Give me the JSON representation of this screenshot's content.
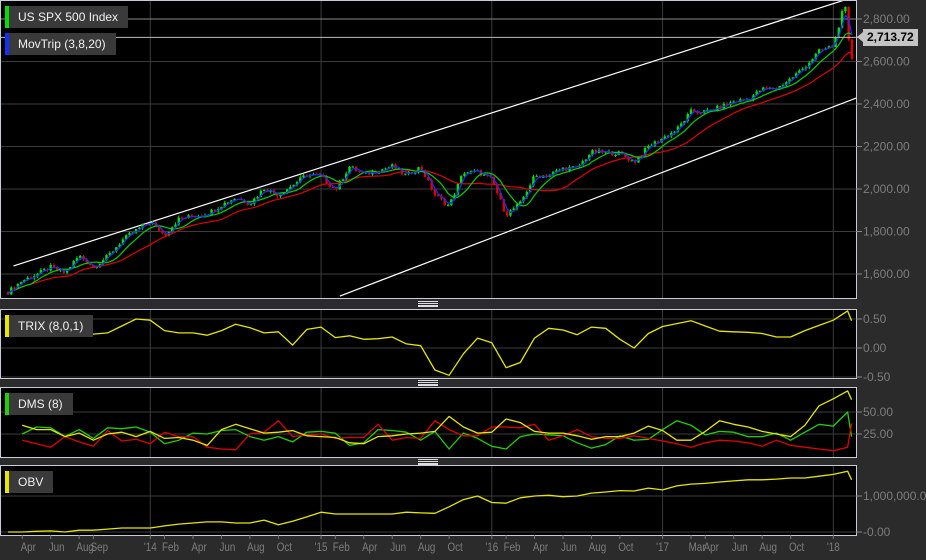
{
  "colors": {
    "up": "#00e000",
    "down": "#e00000",
    "ma_fast": "#1030ff",
    "ma_mid": "#00d000",
    "ma_slow": "#e00000",
    "trix": "#e6e600",
    "dms_plus": "#20d000",
    "dms_minus": "#e00000",
    "adx": "#e6e600",
    "obv": "#e6e600",
    "trendline": "#ffffff"
  },
  "legends": {
    "price": {
      "label": "US SPX 500 Index",
      "color": "#00e000"
    },
    "movtrip": {
      "label": "MovTrip (3,8,20)",
      "color": "#1030ff"
    },
    "trix": {
      "label": "TRIX (8,0,1)",
      "color": "#e6e600"
    },
    "dms": {
      "label": "DMS (8)",
      "color": "#20d000"
    },
    "obv": {
      "label": "OBV",
      "color": "#e6e600"
    }
  },
  "last_price_label": "2,713.72",
  "chart_data": [
    {
      "type": "candlestick",
      "name": "US SPX 500 Index",
      "overlay": "MovTrip (3,8,20)",
      "ylim": [
        1480,
        2890
      ],
      "yticks": [
        {
          "v": 2800,
          "t": "2,800.00"
        },
        {
          "v": 2600,
          "t": "2,600.00"
        },
        {
          "v": 2400,
          "t": "2,400.00"
        },
        {
          "v": 2200,
          "t": "2,200.00"
        },
        {
          "v": 2000,
          "t": "2,000.00"
        },
        {
          "v": 1800,
          "t": "1,800.00"
        },
        {
          "v": 1600,
          "t": "1,600.00"
        }
      ],
      "last_price": 2713.72,
      "close": [
        [
          "2013-03-01",
          1515
        ],
        [
          "2013-04-01",
          1569
        ],
        [
          "2013-05-01",
          1598
        ],
        [
          "2013-06-01",
          1631
        ],
        [
          "2013-07-01",
          1606
        ],
        [
          "2013-08-01",
          1686
        ],
        [
          "2013-09-01",
          1633
        ],
        [
          "2013-10-01",
          1682
        ],
        [
          "2013-11-01",
          1757
        ],
        [
          "2013-12-01",
          1806
        ],
        [
          "2014-01-01",
          1848
        ],
        [
          "2014-02-01",
          1783
        ],
        [
          "2014-03-01",
          1859
        ],
        [
          "2014-04-01",
          1872
        ],
        [
          "2014-05-01",
          1884
        ],
        [
          "2014-06-01",
          1924
        ],
        [
          "2014-07-01",
          1960
        ],
        [
          "2014-08-01",
          1931
        ],
        [
          "2014-09-01",
          2003
        ],
        [
          "2014-10-01",
          1972
        ],
        [
          "2014-11-01",
          2018
        ],
        [
          "2014-12-01",
          2068
        ],
        [
          "2015-01-01",
          2059
        ],
        [
          "2015-02-01",
          1995
        ],
        [
          "2015-03-01",
          2105
        ],
        [
          "2015-04-01",
          2068
        ],
        [
          "2015-05-01",
          2086
        ],
        [
          "2015-06-01",
          2107
        ],
        [
          "2015-07-01",
          2063
        ],
        [
          "2015-08-01",
          2104
        ],
        [
          "2015-09-01",
          1972
        ],
        [
          "2015-10-01",
          1920
        ],
        [
          "2015-11-01",
          2079
        ],
        [
          "2015-12-01",
          2080
        ],
        [
          "2016-01-01",
          2044
        ],
        [
          "2016-02-01",
          1880
        ],
        [
          "2016-03-01",
          1932
        ],
        [
          "2016-04-01",
          2060
        ],
        [
          "2016-05-01",
          2065
        ],
        [
          "2016-06-01",
          2097
        ],
        [
          "2016-07-01",
          2099
        ],
        [
          "2016-08-01",
          2174
        ],
        [
          "2016-09-01",
          2171
        ],
        [
          "2016-10-01",
          2168
        ],
        [
          "2016-11-01",
          2126
        ],
        [
          "2016-12-01",
          2199
        ],
        [
          "2017-01-01",
          2239
        ],
        [
          "2017-02-01",
          2279
        ],
        [
          "2017-03-01",
          2364
        ],
        [
          "2017-04-01",
          2363
        ],
        [
          "2017-05-01",
          2384
        ],
        [
          "2017-06-01",
          2412
        ],
        [
          "2017-07-01",
          2423
        ],
        [
          "2017-08-01",
          2470
        ],
        [
          "2017-09-01",
          2472
        ],
        [
          "2017-10-01",
          2519
        ],
        [
          "2017-11-01",
          2575
        ],
        [
          "2017-12-01",
          2648
        ],
        [
          "2018-01-01",
          2674
        ],
        [
          "2018-01-26",
          2873
        ],
        [
          "2018-02-08",
          2581
        ],
        [
          "2018-02-13",
          2690
        ]
      ],
      "trendlines": [
        {
          "from": [
            "2013-03-13",
            1638
          ],
          "to": [
            "2018-01-25",
            2889
          ]
        },
        {
          "from": [
            "2015-02-10",
            1496
          ],
          "to": [
            "2018-02-18",
            2428
          ]
        }
      ],
      "hlines": [
        2800,
        2713.72
      ]
    },
    {
      "type": "line",
      "name": "TRIX (8,0,1)",
      "ylim": [
        -0.5,
        0.68
      ],
      "yticks": [
        {
          "v": 0.5,
          "t": "0.50"
        },
        {
          "v": 0,
          "t": "0.00"
        },
        {
          "v": -0.5,
          "t": "-0.50"
        }
      ],
      "values": [
        0.2,
        0.24,
        0.24,
        0.24,
        0.24,
        0.24,
        0.24,
        0.26,
        0.38,
        0.5,
        0.48,
        0.3,
        0.26,
        0.26,
        0.22,
        0.3,
        0.41,
        0.35,
        0.26,
        0.28,
        0.05,
        0.32,
        0.36,
        0.18,
        0.21,
        0.15,
        0.16,
        0.19,
        0.07,
        0.04,
        -0.38,
        -0.47,
        -0.1,
        0.17,
        0.09,
        -0.34,
        -0.25,
        0.17,
        0.34,
        0.31,
        0.23,
        0.36,
        0.34,
        0.15,
        0.0,
        0.25,
        0.37,
        0.42,
        0.47,
        0.38,
        0.29,
        0.28,
        0.27,
        0.25,
        0.19,
        0.19,
        0.3,
        0.39,
        0.48,
        0.64,
        0.47
      ]
    },
    {
      "type": "line",
      "name": "DMS (8)",
      "ylim": [
        0,
        78
      ],
      "yticks": [
        {
          "v": 50,
          "t": "50.00"
        },
        {
          "v": 25,
          "t": "25.00"
        }
      ],
      "series": [
        {
          "key": "plus",
          "values": [
            null,
            25,
            33,
            32,
            22,
            30,
            20,
            32,
            31,
            33,
            27,
            14,
            18,
            26,
            25,
            29,
            30,
            22,
            18,
            22,
            16,
            27,
            28,
            26,
            12,
            15,
            30,
            29,
            27,
            18,
            28,
            8,
            26,
            20,
            11,
            8,
            22,
            25,
            24,
            23,
            15,
            9,
            13,
            23,
            18,
            19,
            30,
            40,
            35,
            24,
            28,
            27,
            22,
            22,
            26,
            18,
            27,
            36,
            34,
            50,
            22
          ]
        },
        {
          "key": "minus",
          "values": [
            null,
            18,
            14,
            10,
            22,
            16,
            11,
            29,
            17,
            19,
            14,
            27,
            22,
            22,
            10,
            8,
            7,
            25,
            27,
            40,
            22,
            24,
            25,
            20,
            21,
            21,
            36,
            18,
            21,
            20,
            40,
            30,
            23,
            23,
            33,
            33,
            32,
            36,
            18,
            23,
            30,
            22,
            20,
            20,
            23,
            20,
            17,
            14,
            10,
            15,
            18,
            17,
            15,
            11,
            18,
            12,
            10,
            8,
            6,
            10,
            37
          ]
        },
        {
          "key": "adx",
          "values": [
            null,
            35,
            30,
            30,
            22,
            26,
            18,
            25,
            27,
            22,
            28,
            20,
            21,
            18,
            12,
            30,
            36,
            31,
            26,
            27,
            29,
            23,
            22,
            21,
            15,
            14,
            22,
            23,
            25,
            26,
            28,
            45,
            33,
            26,
            27,
            42,
            38,
            28,
            26,
            26,
            23,
            19,
            22,
            22,
            26,
            34,
            29,
            18,
            18,
            28,
            40,
            36,
            33,
            28,
            25,
            22,
            35,
            57,
            65,
            74,
            64
          ]
        }
      ]
    },
    {
      "type": "line",
      "name": "OBV",
      "ylim": [
        0,
        1900000
      ],
      "yticks": [
        {
          "v": 1000000,
          "t": "1,000,000.00"
        },
        {
          "v": 0,
          "t": "-0.00"
        }
      ],
      "values": [
        0,
        0,
        20000,
        30000,
        0,
        50000,
        50000,
        80000,
        110000,
        110000,
        110000,
        170000,
        220000,
        250000,
        280000,
        280000,
        250000,
        250000,
        330000,
        200000,
        300000,
        420000,
        550000,
        500000,
        500000,
        500000,
        500000,
        500000,
        550000,
        530000,
        520000,
        700000,
        900000,
        1000000,
        820000,
        800000,
        950000,
        1000000,
        1020000,
        980000,
        1000000,
        1080000,
        1110000,
        1150000,
        1140000,
        1220000,
        1170000,
        1280000,
        1330000,
        1350000,
        1390000,
        1420000,
        1450000,
        1450000,
        1470000,
        1500000,
        1500000,
        1550000,
        1600000,
        1690000,
        1450000
      ]
    }
  ],
  "indicator_dates": [
    "2013-03-01",
    "2013-04-01",
    "2013-05-01",
    "2013-06-01",
    "2013-07-01",
    "2013-08-01",
    "2013-09-01",
    "2013-10-01",
    "2013-11-01",
    "2013-12-01",
    "2014-01-01",
    "2014-02-01",
    "2014-03-01",
    "2014-04-01",
    "2014-05-01",
    "2014-06-01",
    "2014-07-01",
    "2014-08-01",
    "2014-09-01",
    "2014-10-01",
    "2014-11-01",
    "2014-12-01",
    "2015-01-01",
    "2015-02-01",
    "2015-03-01",
    "2015-04-01",
    "2015-05-01",
    "2015-06-01",
    "2015-07-01",
    "2015-08-01",
    "2015-09-01",
    "2015-10-01",
    "2015-11-01",
    "2015-12-01",
    "2016-01-01",
    "2016-02-01",
    "2016-03-01",
    "2016-04-01",
    "2016-05-01",
    "2016-06-01",
    "2016-07-01",
    "2016-08-01",
    "2016-09-01",
    "2016-10-01",
    "2016-11-01",
    "2016-12-01",
    "2017-01-01",
    "2017-02-01",
    "2017-03-01",
    "2017-04-01",
    "2017-05-01",
    "2017-06-01",
    "2017-07-01",
    "2017-08-01",
    "2017-09-01",
    "2017-10-01",
    "2017-11-01",
    "2017-12-01",
    "2018-01-01",
    "2018-02-01",
    "2018-02-09"
  ],
  "xaxis": {
    "year_gridlines": [
      "2014-01-01",
      "2015-01-01",
      "2016-01-01",
      "2017-01-01",
      "2018-01-01"
    ],
    "labels": [
      [
        "2013-04-01",
        "Apr"
      ],
      [
        "2013-06-01",
        "Jun"
      ],
      [
        "2013-08-01",
        "Aug"
      ],
      [
        "2013-09-01",
        "Sep"
      ],
      [
        "2014-01-01",
        "'14"
      ],
      [
        "2014-02-01",
        "Feb"
      ],
      [
        "2014-04-01",
        "Apr"
      ],
      [
        "2014-06-01",
        "Jun"
      ],
      [
        "2014-08-01",
        "Aug"
      ],
      [
        "2014-10-01",
        "Oct"
      ],
      [
        "2015-01-01",
        "'15"
      ],
      [
        "2015-02-01",
        "Feb"
      ],
      [
        "2015-04-01",
        "Apr"
      ],
      [
        "2015-06-01",
        "Jun"
      ],
      [
        "2015-08-01",
        "Aug"
      ],
      [
        "2015-10-01",
        "Oct"
      ],
      [
        "2016-01-01",
        "'16"
      ],
      [
        "2016-02-01",
        "Feb"
      ],
      [
        "2016-04-01",
        "Apr"
      ],
      [
        "2016-06-01",
        "Jun"
      ],
      [
        "2016-08-01",
        "Aug"
      ],
      [
        "2016-10-01",
        "Oct"
      ],
      [
        "2017-01-01",
        "'17"
      ],
      [
        "2017-03-01",
        "Mar"
      ],
      [
        "2017-04-01",
        "Apr"
      ],
      [
        "2017-06-01",
        "Jun"
      ],
      [
        "2017-08-01",
        "Aug"
      ],
      [
        "2017-10-01",
        "Oct"
      ],
      [
        "2018-01-01",
        "'18"
      ]
    ]
  }
}
